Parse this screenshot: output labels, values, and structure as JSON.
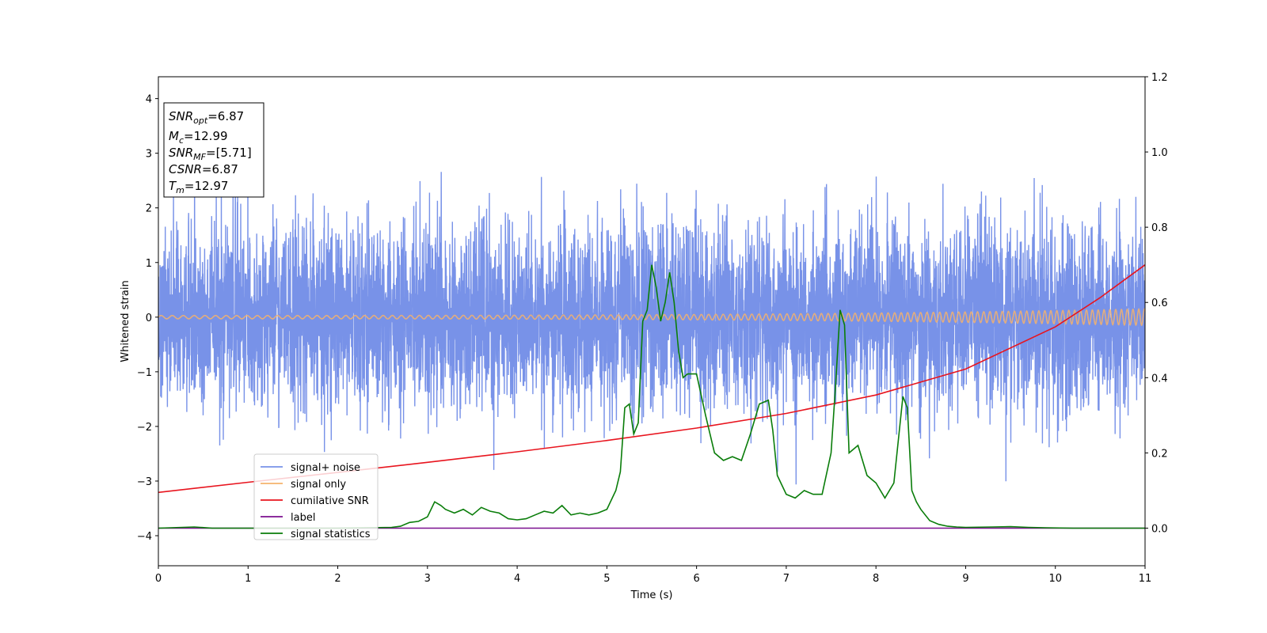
{
  "chart_data": {
    "type": "line",
    "xlabel": "Time (s)",
    "ylabel": "Whitened strain",
    "xlim": [
      0,
      11
    ],
    "ylim": [
      -4.55,
      4.4
    ],
    "y2lim": [
      -0.1,
      1.2
    ],
    "x_ticks": [
      0,
      1,
      2,
      3,
      4,
      5,
      6,
      7,
      8,
      9,
      10,
      11
    ],
    "y_ticks": [
      -4,
      -3,
      -2,
      -1,
      0,
      1,
      2,
      3,
      4
    ],
    "y2_ticks": [
      0.0,
      0.2,
      0.4,
      0.6,
      0.8,
      1.0,
      1.2
    ],
    "legend_position": "lower-left",
    "info_box": [
      {
        "symbol": "SNR",
        "sub": "opt",
        "value": "=6.87"
      },
      {
        "symbol": "M",
        "sub": "c",
        "value": "=12.99"
      },
      {
        "symbol": "SNR",
        "sub": "MF",
        "value": "=[5.71]"
      },
      {
        "symbol": "CSNR",
        "sub": "",
        "value": "=6.87"
      },
      {
        "symbol": "T",
        "sub": "m",
        "value": "=12.97"
      }
    ],
    "series": [
      {
        "name": "signal+ noise",
        "axis": "left",
        "color": "#7892e8",
        "noise_std": 0.85,
        "x_range": [
          0,
          11
        ]
      },
      {
        "name": "signal only",
        "axis": "left",
        "color": "#f5b26b",
        "amplitude_start": 0.03,
        "amplitude_end": 0.15,
        "x_range": [
          0,
          11
        ]
      },
      {
        "name": "cumilative SNR",
        "axis": "right",
        "color": "#e8141e",
        "x": [
          0,
          1,
          2,
          3,
          4,
          5,
          6,
          7,
          8,
          9,
          10,
          10.5,
          11
        ],
        "values": [
          0.095,
          0.122,
          0.148,
          0.175,
          0.203,
          0.233,
          0.266,
          0.305,
          0.354,
          0.423,
          0.535,
          0.613,
          0.7
        ]
      },
      {
        "name": "label",
        "axis": "right",
        "color": "#7b0f8f",
        "x": [
          0,
          11
        ],
        "values": [
          0.0,
          0.0
        ]
      },
      {
        "name": "signal statistics",
        "axis": "right",
        "color": "#0a7d0a",
        "x": [
          0,
          0.4,
          0.6,
          1.0,
          2.0,
          2.6,
          2.7,
          2.8,
          2.9,
          3.0,
          3.08,
          3.15,
          3.2,
          3.3,
          3.4,
          3.5,
          3.6,
          3.7,
          3.8,
          3.9,
          4.0,
          4.1,
          4.2,
          4.3,
          4.4,
          4.5,
          4.6,
          4.7,
          4.8,
          4.9,
          5.0,
          5.1,
          5.15,
          5.2,
          5.25,
          5.3,
          5.35,
          5.4,
          5.45,
          5.5,
          5.55,
          5.6,
          5.65,
          5.7,
          5.75,
          5.8,
          5.85,
          5.9,
          6.0,
          6.1,
          6.2,
          6.3,
          6.4,
          6.5,
          6.6,
          6.7,
          6.8,
          6.85,
          6.9,
          7.0,
          7.1,
          7.2,
          7.3,
          7.4,
          7.5,
          7.55,
          7.6,
          7.65,
          7.7,
          7.8,
          7.9,
          8.0,
          8.1,
          8.2,
          8.3,
          8.35,
          8.4,
          8.45,
          8.5,
          8.6,
          8.7,
          8.8,
          8.9,
          9.0,
          9.3,
          9.5,
          9.7,
          9.9,
          10.2,
          10.5,
          11.0
        ],
        "values": [
          0.0,
          0.003,
          0.0,
          0.0,
          0.0,
          0.002,
          0.005,
          0.015,
          0.018,
          0.03,
          0.07,
          0.06,
          0.05,
          0.04,
          0.05,
          0.035,
          0.055,
          0.045,
          0.04,
          0.025,
          0.022,
          0.025,
          0.035,
          0.045,
          0.04,
          0.06,
          0.035,
          0.04,
          0.035,
          0.04,
          0.05,
          0.1,
          0.15,
          0.32,
          0.33,
          0.25,
          0.28,
          0.55,
          0.58,
          0.7,
          0.64,
          0.55,
          0.6,
          0.68,
          0.6,
          0.47,
          0.4,
          0.41,
          0.41,
          0.3,
          0.2,
          0.18,
          0.19,
          0.18,
          0.25,
          0.33,
          0.34,
          0.26,
          0.14,
          0.09,
          0.08,
          0.1,
          0.09,
          0.09,
          0.2,
          0.38,
          0.58,
          0.54,
          0.2,
          0.22,
          0.14,
          0.12,
          0.08,
          0.12,
          0.35,
          0.32,
          0.1,
          0.07,
          0.05,
          0.02,
          0.01,
          0.005,
          0.003,
          0.002,
          0.003,
          0.004,
          0.002,
          0.001,
          0.0,
          0.0,
          0.0
        ]
      }
    ]
  }
}
